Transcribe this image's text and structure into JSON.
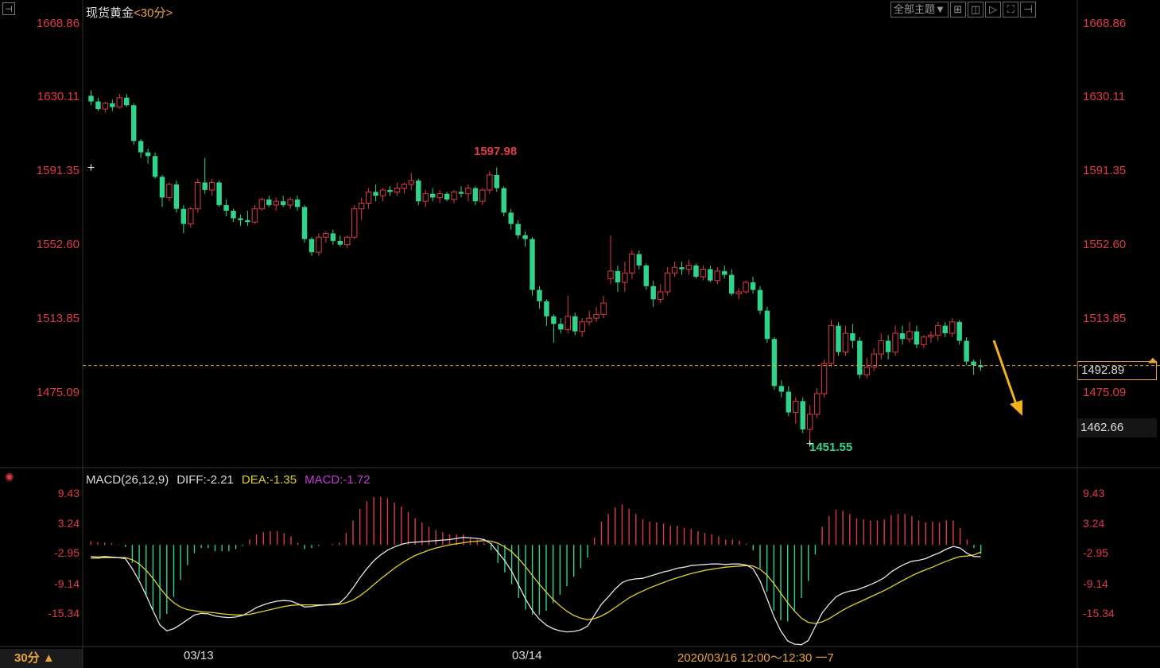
{
  "header": {
    "instrument": "现货黄金",
    "period": "<30分>",
    "toolbar": [
      "全部主题▼",
      "⊞",
      "◫",
      "▷",
      "⛶",
      "⊣"
    ]
  },
  "price_axis": {
    "labels": [
      "1668.86",
      "1630.11",
      "1591.35",
      "1552.60",
      "1513.85",
      "1475.09"
    ],
    "last_price": "1492.89",
    "cursor_price": "1462.66"
  },
  "annotations": {
    "high": "1597.98",
    "low": "1451.55"
  },
  "macd": {
    "name": "MACD(26,12,9)",
    "diff": "DIFF:-2.21",
    "dea": "DEA:-1.35",
    "macd": "MACD:-1.72",
    "axis_labels": [
      "9.43",
      "3.24",
      "-2.95",
      "-9.14",
      "-15.34"
    ]
  },
  "footer": {
    "period_button": "30分 ▲",
    "dates": [
      "03/13",
      "03/14"
    ],
    "range": "2020/03/16 12:00～12:30 一7"
  },
  "colors": {
    "up": "#e03a47",
    "down": "#2fd38a",
    "diff": "#e6e6e6",
    "dea": "#e0d22a",
    "macd_label": "#c43bd6",
    "accent": "#e8a33d"
  },
  "chart_data": [
    {
      "type": "candlestick",
      "title": "现货黄金 30分",
      "ylim": [
        1440,
        1675
      ],
      "last_price": 1492.89,
      "high_marker": 1597.98,
      "low_marker": 1451.55,
      "ohlc": [
        [
          1636,
          1639,
          1631,
          1633
        ],
        [
          1633,
          1635,
          1628,
          1629
        ],
        [
          1629,
          1633,
          1627,
          1632
        ],
        [
          1632,
          1634,
          1628,
          1630
        ],
        [
          1630,
          1637,
          1629,
          1635
        ],
        [
          1635,
          1637,
          1630,
          1631
        ],
        [
          1631,
          1632,
          1610,
          1612
        ],
        [
          1612,
          1613,
          1603,
          1606
        ],
        [
          1606,
          1608,
          1600,
          1604
        ],
        [
          1604,
          1606,
          1592,
          1593
        ],
        [
          1593,
          1594,
          1577,
          1582
        ],
        [
          1582,
          1590,
          1580,
          1589
        ],
        [
          1589,
          1591,
          1574,
          1576
        ],
        [
          1576,
          1578,
          1563,
          1568
        ],
        [
          1568,
          1577,
          1566,
          1576
        ],
        [
          1576,
          1592,
          1574,
          1590
        ],
        [
          1590,
          1603,
          1584,
          1586
        ],
        [
          1586,
          1592,
          1583,
          1590
        ],
        [
          1590,
          1591,
          1577,
          1578
        ],
        [
          1578,
          1581,
          1572,
          1575
        ],
        [
          1575,
          1576,
          1569,
          1571
        ],
        [
          1571,
          1573,
          1567,
          1570
        ],
        [
          1570,
          1575,
          1567,
          1569
        ],
        [
          1569,
          1578,
          1568,
          1576
        ],
        [
          1576,
          1582,
          1575,
          1581
        ],
        [
          1581,
          1583,
          1577,
          1578
        ],
        [
          1578,
          1582,
          1575,
          1580
        ],
        [
          1580,
          1583,
          1577,
          1578
        ],
        [
          1578,
          1582,
          1576,
          1581
        ],
        [
          1581,
          1583,
          1575,
          1577
        ],
        [
          1577,
          1578,
          1558,
          1560
        ],
        [
          1560,
          1561,
          1551,
          1553
        ],
        [
          1553,
          1563,
          1551,
          1561
        ],
        [
          1561,
          1564,
          1558,
          1563
        ],
        [
          1563,
          1565,
          1557,
          1559
        ],
        [
          1559,
          1562,
          1556,
          1557
        ],
        [
          1557,
          1562,
          1555,
          1561
        ],
        [
          1561,
          1578,
          1560,
          1576
        ],
        [
          1576,
          1582,
          1570,
          1579
        ],
        [
          1579,
          1587,
          1576,
          1585
        ],
        [
          1585,
          1589,
          1580,
          1583
        ],
        [
          1583,
          1587,
          1580,
          1586
        ],
        [
          1586,
          1588,
          1583,
          1585
        ],
        [
          1585,
          1590,
          1583,
          1587
        ],
        [
          1587,
          1590,
          1584,
          1589
        ],
        [
          1589,
          1595,
          1586,
          1591
        ],
        [
          1591,
          1592,
          1578,
          1580
        ],
        [
          1580,
          1586,
          1577,
          1584
        ],
        [
          1584,
          1587,
          1580,
          1582
        ],
        [
          1582,
          1586,
          1579,
          1584
        ],
        [
          1584,
          1585,
          1580,
          1581
        ],
        [
          1581,
          1586,
          1579,
          1585
        ],
        [
          1585,
          1588,
          1582,
          1584
        ],
        [
          1584,
          1589,
          1580,
          1587
        ],
        [
          1587,
          1588,
          1578,
          1580
        ],
        [
          1580,
          1587,
          1578,
          1586
        ],
        [
          1586,
          1596,
          1584,
          1594
        ],
        [
          1594,
          1598,
          1585,
          1587
        ],
        [
          1587,
          1588,
          1572,
          1574
        ],
        [
          1574,
          1576,
          1565,
          1568
        ],
        [
          1568,
          1570,
          1560,
          1562
        ],
        [
          1562,
          1564,
          1556,
          1560
        ],
        [
          1560,
          1561,
          1530,
          1533
        ],
        [
          1533,
          1535,
          1523,
          1527
        ],
        [
          1527,
          1528,
          1514,
          1519
        ],
        [
          1519,
          1520,
          1505,
          1515
        ],
        [
          1515,
          1518,
          1510,
          1512
        ],
        [
          1512,
          1530,
          1510,
          1519
        ],
        [
          1519,
          1521,
          1509,
          1511
        ],
        [
          1511,
          1518,
          1508,
          1516
        ],
        [
          1516,
          1522,
          1514,
          1518
        ],
        [
          1518,
          1524,
          1516,
          1520
        ],
        [
          1520,
          1530,
          1518,
          1526
        ],
        [
          1539,
          1562,
          1536,
          1543
        ],
        [
          1543,
          1546,
          1532,
          1537
        ],
        [
          1537,
          1548,
          1532,
          1542
        ],
        [
          1542,
          1554,
          1539,
          1552
        ],
        [
          1552,
          1554,
          1544,
          1546
        ],
        [
          1546,
          1547,
          1533,
          1535
        ],
        [
          1535,
          1538,
          1524,
          1528
        ],
        [
          1528,
          1536,
          1526,
          1532
        ],
        [
          1532,
          1545,
          1530,
          1542
        ],
        [
          1542,
          1548,
          1540,
          1545
        ],
        [
          1545,
          1548,
          1541,
          1544
        ],
        [
          1544,
          1549,
          1541,
          1546
        ],
        [
          1546,
          1547,
          1539,
          1540
        ],
        [
          1540,
          1546,
          1538,
          1544
        ],
        [
          1544,
          1546,
          1537,
          1538
        ],
        [
          1538,
          1545,
          1536,
          1543
        ],
        [
          1543,
          1546,
          1539,
          1541
        ],
        [
          1541,
          1544,
          1530,
          1531
        ],
        [
          1531,
          1534,
          1528,
          1532
        ],
        [
          1532,
          1538,
          1531,
          1537
        ],
        [
          1537,
          1540,
          1531,
          1533
        ],
        [
          1533,
          1535,
          1520,
          1522
        ],
        [
          1522,
          1524,
          1505,
          1507
        ],
        [
          1507,
          1508,
          1480,
          1482
        ],
        [
          1482,
          1485,
          1476,
          1479
        ],
        [
          1479,
          1482,
          1466,
          1468
        ],
        [
          1468,
          1476,
          1462,
          1474
        ],
        [
          1474,
          1476,
          1457,
          1459
        ],
        [
          1459,
          1472,
          1451,
          1467
        ],
        [
          1467,
          1481,
          1465,
          1478
        ],
        [
          1478,
          1496,
          1476,
          1494
        ],
        [
          1494,
          1517,
          1492,
          1514
        ],
        [
          1514,
          1516,
          1498,
          1500
        ],
        [
          1500,
          1514,
          1498,
          1510
        ],
        [
          1510,
          1515,
          1502,
          1506
        ],
        [
          1506,
          1508,
          1486,
          1488
        ],
        [
          1488,
          1497,
          1486,
          1492
        ],
        [
          1492,
          1502,
          1490,
          1499
        ],
        [
          1499,
          1510,
          1496,
          1506
        ],
        [
          1506,
          1509,
          1496,
          1500
        ],
        [
          1500,
          1514,
          1498,
          1510
        ],
        [
          1510,
          1514,
          1504,
          1507
        ],
        [
          1507,
          1516,
          1505,
          1511
        ],
        [
          1511,
          1514,
          1502,
          1504
        ],
        [
          1504,
          1509,
          1502,
          1508
        ],
        [
          1508,
          1511,
          1505,
          1509
        ],
        [
          1509,
          1516,
          1506,
          1514
        ],
        [
          1514,
          1516,
          1508,
          1510
        ],
        [
          1510,
          1518,
          1508,
          1516
        ],
        [
          1516,
          1517,
          1504,
          1506
        ],
        [
          1506,
          1508,
          1493,
          1495
        ],
        [
          1495,
          1496,
          1488,
          1493
        ],
        [
          1493,
          1496,
          1490,
          1492
        ]
      ]
    },
    {
      "type": "line+bar",
      "title": "MACD(26,12,9)",
      "ylim": [
        -19,
        12
      ],
      "series": [
        {
          "name": "DIFF",
          "values": [
            -2.2,
            -2.3,
            -2.2,
            -2.3,
            -2.4,
            -2.6,
            -4.5,
            -6.8,
            -9.5,
            -12.4,
            -15.1,
            -16.2,
            -15.8,
            -15.0,
            -14.1,
            -13.2,
            -12.9,
            -13.0,
            -13.4,
            -13.6,
            -13.7,
            -13.6,
            -13.3,
            -12.6,
            -11.8,
            -11.3,
            -10.9,
            -10.6,
            -10.5,
            -10.6,
            -11.1,
            -11.7,
            -11.6,
            -11.4,
            -11.3,
            -11.2,
            -11.0,
            -9.8,
            -8.1,
            -6.2,
            -4.5,
            -3.0,
            -1.9,
            -1.0,
            -0.4,
            0.1,
            0.4,
            0.5,
            0.6,
            0.7,
            0.8,
            0.9,
            1.0,
            1.2,
            1.4,
            1.3,
            1.2,
            1.0,
            0.2,
            -1.4,
            -3.0,
            -5.0,
            -7.6,
            -10.2,
            -12.4,
            -14.0,
            -15.1,
            -15.8,
            -16.2,
            -16.4,
            -16.3,
            -16.0,
            -15.3,
            -13.2,
            -11.2,
            -9.8,
            -8.3,
            -7.1,
            -6.6,
            -6.4,
            -6.3,
            -5.9,
            -5.5,
            -5.1,
            -4.8,
            -4.4,
            -4.2,
            -3.9,
            -3.8,
            -3.7,
            -3.6,
            -3.6,
            -3.7,
            -3.6,
            -3.6,
            -3.8,
            -4.5,
            -6.8,
            -10.1,
            -13.5,
            -16.2,
            -18.1,
            -18.7,
            -18.8,
            -18.0,
            -15.4,
            -12.8,
            -11.2,
            -9.8,
            -9.1,
            -8.7,
            -8.5,
            -8.0,
            -7.5,
            -6.9,
            -6.2,
            -5.1,
            -4.3,
            -3.6,
            -3.1,
            -2.9,
            -2.6,
            -2.0,
            -1.5,
            -0.8,
            -0.3,
            -0.6,
            -1.6,
            -2.2,
            -2.21
          ]
        },
        {
          "name": "DEA",
          "values": [
            -2.5,
            -2.5,
            -2.4,
            -2.4,
            -2.4,
            -2.4,
            -2.8,
            -3.6,
            -4.8,
            -6.3,
            -8.1,
            -9.7,
            -10.9,
            -11.7,
            -12.2,
            -12.4,
            -12.6,
            -12.7,
            -12.8,
            -13.0,
            -13.1,
            -13.2,
            -13.2,
            -13.1,
            -12.8,
            -12.5,
            -12.2,
            -11.9,
            -11.6,
            -11.4,
            -11.3,
            -11.3,
            -11.3,
            -11.3,
            -11.3,
            -11.3,
            -11.2,
            -10.9,
            -10.4,
            -9.6,
            -8.6,
            -7.5,
            -6.4,
            -5.4,
            -4.4,
            -3.5,
            -2.7,
            -2.0,
            -1.5,
            -1.0,
            -0.6,
            -0.3,
            0.0,
            0.2,
            0.4,
            0.6,
            0.7,
            0.8,
            0.7,
            0.3,
            -0.4,
            -1.3,
            -2.6,
            -4.1,
            -5.8,
            -7.4,
            -8.9,
            -10.3,
            -11.5,
            -12.5,
            -13.3,
            -13.8,
            -14.1,
            -13.9,
            -13.4,
            -12.7,
            -11.8,
            -10.9,
            -10.0,
            -9.3,
            -8.7,
            -8.1,
            -7.6,
            -7.1,
            -6.6,
            -6.2,
            -5.8,
            -5.4,
            -5.1,
            -4.8,
            -4.6,
            -4.4,
            -4.2,
            -4.1,
            -4.0,
            -3.9,
            -4.0,
            -4.6,
            -5.7,
            -7.3,
            -9.1,
            -10.9,
            -12.5,
            -13.8,
            -14.6,
            -14.8,
            -14.5,
            -13.9,
            -13.1,
            -12.3,
            -11.6,
            -11.0,
            -10.4,
            -9.8,
            -9.2,
            -8.6,
            -7.9,
            -7.2,
            -6.5,
            -5.8,
            -5.2,
            -4.7,
            -4.2,
            -3.6,
            -3.1,
            -2.6,
            -2.2,
            -2.1,
            -1.9,
            -1.35
          ]
        },
        {
          "name": "MACD",
          "values": [
            0.7,
            0.5,
            0.4,
            0.3,
            0.1,
            -0.4,
            -3.4,
            -6.4,
            -9.4,
            -12.2,
            -14.0,
            -13.0,
            -9.8,
            -6.6,
            -3.8,
            -1.6,
            -0.6,
            -0.6,
            -1.2,
            -1.2,
            -1.2,
            -0.8,
            -0.2,
            1.0,
            2.0,
            2.4,
            2.6,
            2.6,
            2.2,
            1.6,
            0.4,
            -0.8,
            -0.6,
            -0.2,
            0.0,
            0.2,
            0.4,
            2.2,
            4.6,
            6.8,
            8.2,
            9.0,
            9.0,
            8.8,
            8.0,
            7.2,
            6.2,
            5.0,
            4.2,
            3.4,
            2.8,
            2.4,
            2.0,
            2.0,
            2.0,
            1.4,
            1.0,
            0.4,
            -1.0,
            -3.4,
            -5.2,
            -7.4,
            -10.0,
            -12.2,
            -13.2,
            -13.2,
            -12.4,
            -11.0,
            -9.4,
            -7.8,
            -6.0,
            -4.4,
            -2.4,
            1.4,
            4.4,
            5.8,
            7.0,
            7.6,
            6.8,
            5.8,
            4.8,
            4.4,
            4.2,
            4.0,
            3.6,
            3.6,
            3.2,
            3.0,
            2.6,
            2.2,
            2.0,
            1.6,
            1.0,
            1.0,
            0.8,
            0.2,
            -1.0,
            -4.4,
            -8.8,
            -12.4,
            -14.2,
            -14.4,
            -12.4,
            -10.0,
            -6.8,
            -1.8,
            3.4,
            5.4,
            6.6,
            6.4,
            5.8,
            5.0,
            4.8,
            4.6,
            4.6,
            4.8,
            5.6,
            5.8,
            5.8,
            5.4,
            4.6,
            4.2,
            4.4,
            4.2,
            4.6,
            4.6,
            3.2,
            1.0,
            -0.6,
            -1.72
          ]
        }
      ]
    }
  ]
}
